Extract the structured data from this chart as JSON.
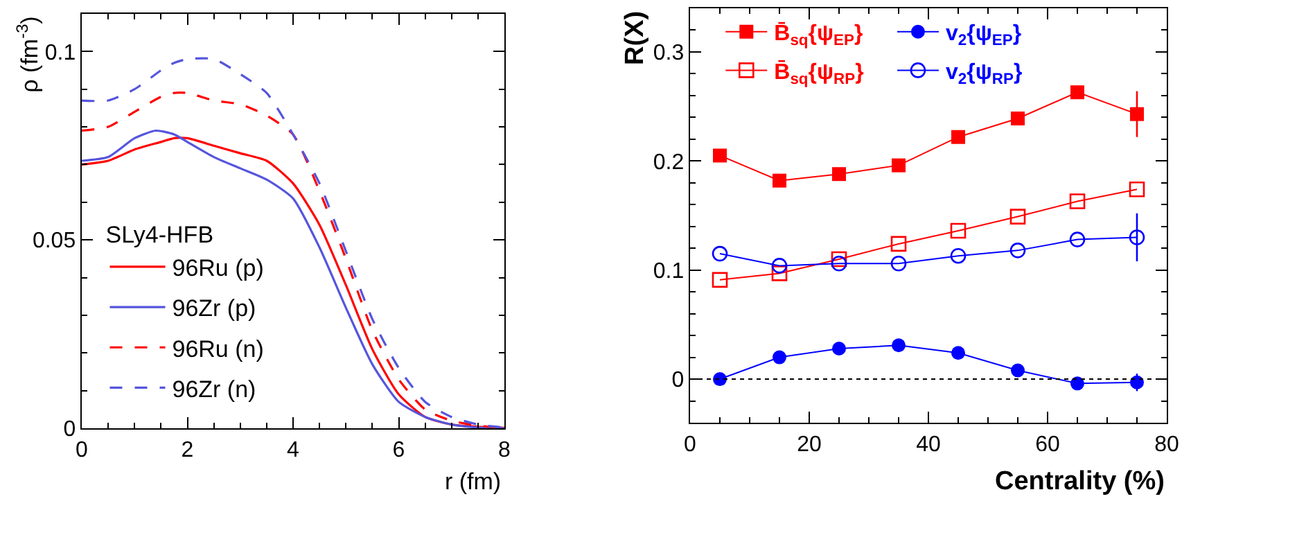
{
  "chart_data": [
    {
      "type": "line",
      "xlabel": "r (fm)",
      "ylabel": "ρ (fm$^{-3}$)",
      "legend_title": "SLy4-HFB",
      "legend": "left",
      "marker": "none",
      "xlim": [
        0,
        8
      ],
      "xticks": [
        0,
        2,
        4,
        6,
        8
      ],
      "ylim": [
        0,
        0.11
      ],
      "yticks": [
        0,
        0.05,
        0.1
      ],
      "x": [
        0,
        0.5,
        1,
        1.5,
        1.75,
        2,
        2.5,
        3,
        3.5,
        4,
        4.5,
        5,
        5.5,
        6,
        6.5,
        7,
        7.5,
        8
      ],
      "series": [
        {
          "name": "96Ru (p)",
          "color": "#ff0000",
          "line_style": "solid",
          "values": [
            0.07,
            0.071,
            0.074,
            0.076,
            0.077,
            0.077,
            0.075,
            0.073,
            0.071,
            0.065,
            0.054,
            0.038,
            0.021,
            0.009,
            0.003,
            0.001,
            0.0004,
            0.0001
          ]
        },
        {
          "name": "96Zr (p)",
          "color": "#5555dd",
          "line_style": "solid",
          "x": [
            0,
            0.5,
            1,
            1.4,
            1.75,
            2,
            2.5,
            3,
            3.5,
            4,
            4.5,
            5,
            5.5,
            6,
            6.5,
            7,
            7.5,
            8
          ],
          "values": [
            0.071,
            0.072,
            0.077,
            0.079,
            0.078,
            0.076,
            0.072,
            0.069,
            0.066,
            0.061,
            0.048,
            0.032,
            0.017,
            0.007,
            0.003,
            0.001,
            0.0002,
            0
          ]
        },
        {
          "name": "96Ru (n)",
          "color": "#ff0000",
          "line_style": "dashed",
          "values": [
            0.079,
            0.08,
            0.084,
            0.088,
            0.089,
            0.089,
            0.087,
            0.086,
            0.083,
            0.078,
            0.063,
            0.045,
            0.026,
            0.013,
            0.005,
            0.002,
            0.0007,
            0.0001
          ]
        },
        {
          "name": "96Zr (n)",
          "color": "#5555dd",
          "line_style": "dashed",
          "values": [
            0.087,
            0.087,
            0.09,
            0.095,
            0.097,
            0.098,
            0.098,
            0.094,
            0.089,
            0.078,
            0.065,
            0.047,
            0.029,
            0.016,
            0.007,
            0.003,
            0.001,
            0.0002
          ]
        }
      ]
    },
    {
      "type": "line",
      "xlabel": "Centrality (%)",
      "ylabel": "R(X)",
      "legend": "top left",
      "xlim": [
        0,
        80
      ],
      "xticks": [
        0,
        20,
        40,
        60,
        80
      ],
      "ylim": [
        -0.04,
        0.34
      ],
      "yticks": [
        0,
        0.1,
        0.2,
        0.3
      ],
      "x": [
        5,
        15,
        25,
        35,
        45,
        55,
        65,
        75
      ],
      "ref_lines": [
        {
          "axis": "y",
          "value": 0,
          "color": "#000000",
          "line_style": "dotted"
        }
      ],
      "series": [
        {
          "name": "B̄$_{sq}${ψ$_{EP}$}",
          "color": "#ff0000",
          "marker": "square",
          "values": [
            0.205,
            0.182,
            0.188,
            0.196,
            0.222,
            0.239,
            0.263,
            0.243
          ],
          "errors": [
            null,
            null,
            null,
            null,
            null,
            null,
            0.004,
            0.021
          ]
        },
        {
          "name": "B̄$_{sq}${ψ$_{RP}$}",
          "color": "#ff0000",
          "marker": "square",
          "values": [
            0.091,
            0.097,
            0.11,
            0.124,
            0.136,
            0.149,
            0.163,
            0.174
          ]
        },
        {
          "name": "v$_{2}${ψ$_{EP}$}",
          "color": "#0000ff",
          "marker": "circle",
          "values": [
            0,
            0.02,
            0.028,
            0.031,
            0.024,
            0.008,
            -0.004,
            -0.003
          ],
          "errors": [
            null,
            null,
            null,
            null,
            null,
            null,
            0.003,
            0.008
          ]
        },
        {
          "name": "v$_{2}${ψ$_{RP}$}",
          "color": "#0000ff",
          "marker": "circle",
          "values": [
            0.115,
            0.104,
            0.106,
            0.106,
            0.113,
            0.118,
            0.128,
            0.13
          ],
          "errors": [
            null,
            null,
            null,
            null,
            null,
            null,
            null,
            0.022
          ]
        }
      ]
    }
  ]
}
